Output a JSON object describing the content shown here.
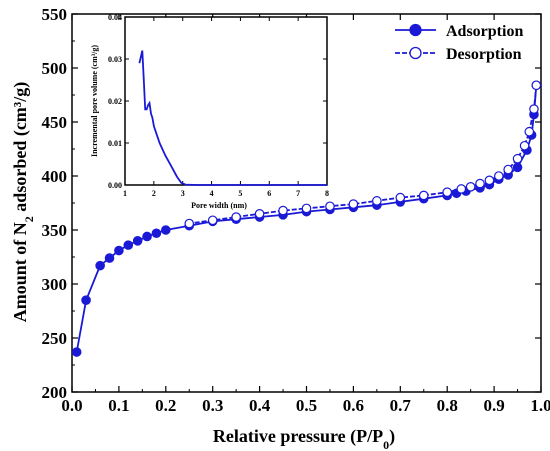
{
  "colors": {
    "series": "#1a1ad6",
    "axis": "#000000",
    "background": "#ffffff"
  },
  "chart_data": [
    {
      "type": "line",
      "xlabel": "Relative pressure (P/P",
      "xlabel_sub": "0",
      "xlabel_end": ")",
      "ylabel": "Amount of N",
      "ylabel_sub": "2",
      "ylabel_end": " adsorbed (cm³/g)",
      "xlim": [
        0.0,
        1.0
      ],
      "ylim": [
        200,
        550
      ],
      "xticks": [
        0.0,
        0.1,
        0.2,
        0.3,
        0.4,
        0.5,
        0.6,
        0.7,
        0.8,
        0.9,
        1.0
      ],
      "xtick_labels": [
        "0.0",
        "0.1",
        "0.2",
        "0.3",
        "0.4",
        "0.5",
        "0.6",
        "0.7",
        "0.8",
        "0.9",
        "1.0"
      ],
      "yticks": [
        200,
        250,
        300,
        350,
        400,
        450,
        500,
        550
      ],
      "ytick_labels": [
        "200",
        "250",
        "300",
        "350",
        "400",
        "450",
        "500",
        "550"
      ],
      "legend_position": "top-right",
      "series": [
        {
          "name": "Adsorption",
          "marker": "filled-circle",
          "x": [
            0.01,
            0.03,
            0.06,
            0.08,
            0.1,
            0.12,
            0.14,
            0.16,
            0.18,
            0.2,
            0.25,
            0.3,
            0.35,
            0.4,
            0.45,
            0.5,
            0.55,
            0.6,
            0.65,
            0.7,
            0.75,
            0.8,
            0.82,
            0.84,
            0.87,
            0.89,
            0.91,
            0.93,
            0.95,
            0.97,
            0.98,
            0.985,
            0.99
          ],
          "y": [
            237,
            285,
            317,
            324,
            331,
            336,
            340,
            344,
            347,
            350,
            354,
            358,
            360,
            362,
            364,
            367,
            369,
            371,
            373,
            376,
            379,
            382,
            384,
            386,
            389,
            392,
            397,
            401,
            408,
            424,
            438,
            457,
            484
          ]
        },
        {
          "name": "Desorption",
          "marker": "open-circle",
          "x": [
            0.99,
            0.985,
            0.975,
            0.965,
            0.95,
            0.93,
            0.91,
            0.89,
            0.87,
            0.85,
            0.83,
            0.8,
            0.75,
            0.7,
            0.65,
            0.6,
            0.55,
            0.5,
            0.45,
            0.4,
            0.35,
            0.3,
            0.25
          ],
          "y": [
            484,
            462,
            441,
            428,
            416,
            406,
            400,
            396,
            393,
            390,
            388,
            385,
            382,
            380,
            377,
            374,
            372,
            370,
            368,
            365,
            362,
            359,
            356
          ]
        }
      ]
    },
    {
      "type": "line",
      "xlabel": "Pore width (nm)",
      "ylabel": "Incremental pore volume (cm³/g)",
      "xlim": [
        1,
        8
      ],
      "ylim": [
        0.0,
        0.04
      ],
      "xticks": [
        1,
        2,
        3,
        4,
        5,
        6,
        7,
        8
      ],
      "xtick_labels": [
        "1",
        "2",
        "3",
        "4",
        "5",
        "6",
        "7",
        "8"
      ],
      "yticks": [
        0.0,
        0.01,
        0.02,
        0.03,
        0.04
      ],
      "ytick_labels": [
        "0.00",
        "0.01",
        "0.02",
        "0.03",
        "0.04"
      ],
      "series": [
        {
          "x": [
            1.5,
            1.6,
            1.65,
            1.7,
            1.75,
            1.8,
            1.85,
            1.9,
            1.95,
            2.0,
            2.2,
            2.4,
            2.6,
            2.8,
            2.95,
            3.1,
            3.5,
            4.0,
            5.0,
            6.0,
            7.0,
            8.0
          ],
          "y": [
            0.029,
            0.032,
            0.025,
            0.018,
            0.018,
            0.019,
            0.0195,
            0.017,
            0.016,
            0.014,
            0.01,
            0.007,
            0.0045,
            0.002,
            0.0005,
            0.0001,
            0.0,
            0.0,
            0.0,
            0.0,
            0.0,
            0.0
          ]
        }
      ]
    }
  ]
}
